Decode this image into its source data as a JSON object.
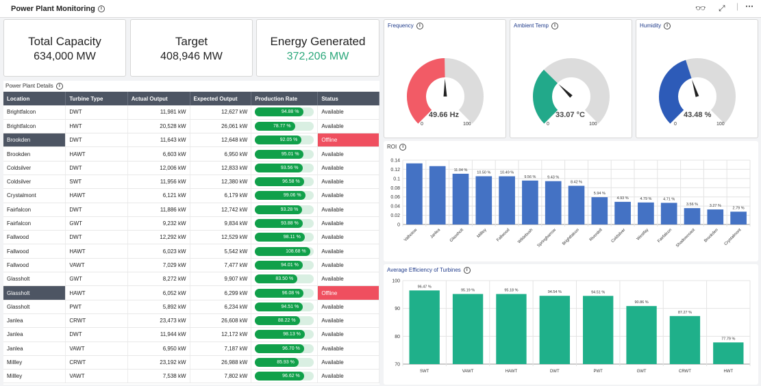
{
  "header": {
    "title": "Power Plant Monitoring"
  },
  "kpis": {
    "total_capacity": {
      "label": "Total Capacity",
      "value": "634,000 MW"
    },
    "target": {
      "label": "Target",
      "value": "408,946 MW"
    },
    "energy_generated": {
      "label": "Energy Generated",
      "value": "372,206 MW"
    }
  },
  "table": {
    "title": "Power Plant Details",
    "columns": [
      "Location",
      "Turbine Type",
      "Actual Output",
      "Expected Output",
      "Production Rate",
      "Status"
    ],
    "rows": [
      {
        "location": "Brightfalcon",
        "type": "DWT",
        "actual": "11,981 kW",
        "expected": "12,627 kW",
        "rate_label": "94.88 %",
        "rate": 94.88,
        "status": "Available",
        "offline": false
      },
      {
        "location": "Brightfalcon",
        "type": "HWT",
        "actual": "20,528 kW",
        "expected": "26,061 kW",
        "rate_label": "78.77 %",
        "rate": 78.77,
        "status": "Available",
        "offline": false
      },
      {
        "location": "Brookden",
        "type": "DWT",
        "actual": "11,643 kW",
        "expected": "12,648 kW",
        "rate_label": "92.05 %",
        "rate": 92.05,
        "status": "Offline",
        "offline": true
      },
      {
        "location": "Brookden",
        "type": "HAWT",
        "actual": "6,603 kW",
        "expected": "6,950 kW",
        "rate_label": "95.01 %",
        "rate": 95.01,
        "status": "Available",
        "offline": false
      },
      {
        "location": "Coldsilver",
        "type": "DWT",
        "actual": "12,006 kW",
        "expected": "12,833 kW",
        "rate_label": "93.56 %",
        "rate": 93.56,
        "status": "Available",
        "offline": false
      },
      {
        "location": "Coldsilver",
        "type": "SWT",
        "actual": "11,956 kW",
        "expected": "12,380 kW",
        "rate_label": "96.58 %",
        "rate": 96.58,
        "status": "Available",
        "offline": false
      },
      {
        "location": "Crystalmont",
        "type": "HAWT",
        "actual": "6,121 kW",
        "expected": "6,179 kW",
        "rate_label": "99.06 %",
        "rate": 99.06,
        "status": "Available",
        "offline": false
      },
      {
        "location": "Fairfalcon",
        "type": "DWT",
        "actual": "11,886 kW",
        "expected": "12,742 kW",
        "rate_label": "93.28 %",
        "rate": 93.28,
        "status": "Available",
        "offline": false
      },
      {
        "location": "Fairfalcon",
        "type": "GWT",
        "actual": "9,232 kW",
        "expected": "9,834 kW",
        "rate_label": "93.88 %",
        "rate": 93.88,
        "status": "Available",
        "offline": false
      },
      {
        "location": "Fallwood",
        "type": "DWT",
        "actual": "12,292 kW",
        "expected": "12,529 kW",
        "rate_label": "98.11 %",
        "rate": 98.11,
        "status": "Available",
        "offline": false
      },
      {
        "location": "Fallwood",
        "type": "HAWT",
        "actual": "6,023 kW",
        "expected": "5,542 kW",
        "rate_label": "108.68 %",
        "rate": 108.68,
        "status": "Available",
        "offline": false
      },
      {
        "location": "Fallwood",
        "type": "VAWT",
        "actual": "7,029 kW",
        "expected": "7,477 kW",
        "rate_label": "94.01 %",
        "rate": 94.01,
        "status": "Available",
        "offline": false
      },
      {
        "location": "Glassholt",
        "type": "GWT",
        "actual": "8,272 kW",
        "expected": "9,907 kW",
        "rate_label": "83.50 %",
        "rate": 83.5,
        "status": "Available",
        "offline": false
      },
      {
        "location": "Glassholt",
        "type": "HAWT",
        "actual": "6,052 kW",
        "expected": "6,299 kW",
        "rate_label": "96.08 %",
        "rate": 96.08,
        "status": "Offline",
        "offline": true
      },
      {
        "location": "Glassholt",
        "type": "PWT",
        "actual": "5,892 kW",
        "expected": "6,234 kW",
        "rate_label": "94.51 %",
        "rate": 94.51,
        "status": "Available",
        "offline": false
      },
      {
        "location": "Janlea",
        "type": "CRWT",
        "actual": "23,473 kW",
        "expected": "26,608 kW",
        "rate_label": "88.22 %",
        "rate": 88.22,
        "status": "Available",
        "offline": false
      },
      {
        "location": "Janlea",
        "type": "DWT",
        "actual": "11,944 kW",
        "expected": "12,172 kW",
        "rate_label": "98.13 %",
        "rate": 98.13,
        "status": "Available",
        "offline": false
      },
      {
        "location": "Janlea",
        "type": "VAWT",
        "actual": "6,950 kW",
        "expected": "7,187 kW",
        "rate_label": "96.70 %",
        "rate": 96.7,
        "status": "Available",
        "offline": false
      },
      {
        "location": "Millley",
        "type": "CRWT",
        "actual": "23,192 kW",
        "expected": "26,988 kW",
        "rate_label": "85.93 %",
        "rate": 85.93,
        "status": "Available",
        "offline": false
      },
      {
        "location": "Millley",
        "type": "VAWT",
        "actual": "7,538 kW",
        "expected": "7,802 kW",
        "rate_label": "96.62 %",
        "rate": 96.62,
        "status": "Available",
        "offline": false
      }
    ]
  },
  "gauges": [
    {
      "title": "Frequency",
      "value": 49.66,
      "value_label": "49.66 Hz",
      "min": "0",
      "max": "100",
      "color": "#f25b66"
    },
    {
      "title": "Ambient Temp",
      "value": 33.07,
      "value_label": "33.07 °C",
      "min": "0",
      "max": "100",
      "color": "#22a98a"
    },
    {
      "title": "Humidity",
      "value": 43.48,
      "value_label": "43.48 %",
      "min": "0",
      "max": "100",
      "color": "#2d5bb8"
    }
  ],
  "chart_data": [
    {
      "type": "bar",
      "title": "ROI",
      "categories": [
        "Valholow",
        "Janlea",
        "Glassholt",
        "Millley",
        "Fallwood",
        "Wildebush",
        "Springbarrow",
        "Brightfalcon",
        "Riverdell",
        "Coldsilver",
        "Westfay",
        "Fairfalcon",
        "Shadowcoast",
        "Brookden",
        "Crystalmont"
      ],
      "values": [
        0.133,
        0.127,
        0.1104,
        0.105,
        0.1049,
        0.0956,
        0.0943,
        0.0842,
        0.0594,
        0.0493,
        0.0479,
        0.0471,
        0.0356,
        0.0327,
        0.0279
      ],
      "data_labels": [
        "",
        "",
        "11.04 %",
        "10.50 %",
        "10.49 %",
        "9.56 %",
        "9.43 %",
        "8.42 %",
        "5.94 %",
        "4.93 %",
        "4.79 %",
        "4.71 %",
        "3.56 %",
        "3.27 %",
        "2.79 %"
      ],
      "ylim": [
        0,
        0.14
      ],
      "yticks": [
        "0",
        "0.02",
        "0.04",
        "0.06",
        "0.08",
        "0.1",
        "0.12",
        "0.14"
      ],
      "color": "#4472c4",
      "grid": true
    },
    {
      "type": "bar",
      "title": "Average Efficiency of Turbines",
      "categories": [
        "SWT",
        "VAWT",
        "HAWT",
        "DWT",
        "PWT",
        "GWT",
        "CRWT",
        "HWT"
      ],
      "values": [
        96.47,
        95.19,
        95.18,
        94.54,
        94.51,
        90.86,
        87.27,
        77.79
      ],
      "data_labels": [
        "96.47 %",
        "95.19 %",
        "95.18 %",
        "94.54 %",
        "94.51 %",
        "90.86 %",
        "87.27 %",
        "77.79 %"
      ],
      "ylim": [
        70,
        100
      ],
      "yticks": [
        "70",
        "80",
        "90",
        "100"
      ],
      "color": "#1fb08a",
      "grid": true
    }
  ]
}
